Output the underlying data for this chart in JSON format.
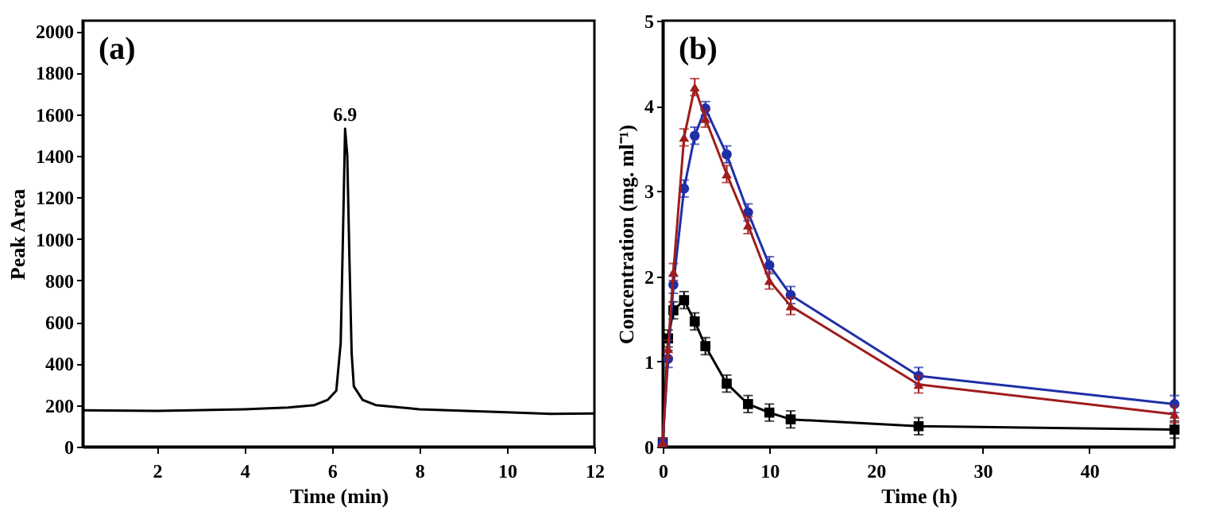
{
  "chart_data": [
    {
      "type": "line",
      "xlabel": "Time (min)",
      "ylabel": "Peak Area",
      "xlim": [
        0.3,
        12
      ],
      "ylim": [
        0,
        2050
      ],
      "xticks": [
        2,
        4,
        6,
        8,
        10,
        12
      ],
      "yticks": [
        0,
        200,
        400,
        600,
        800,
        1000,
        1200,
        1400,
        1600,
        1800,
        2000
      ],
      "grid": false,
      "marker": "none",
      "line_style": "solid",
      "annotations": [
        "(a)",
        {
          "text": "6.9",
          "x": 6.3,
          "y": 1530
        }
      ],
      "series": [
        {
          "color": "#000000",
          "x": [
            0.3,
            2,
            4,
            5,
            5.6,
            5.9,
            6.1,
            6.2,
            6.25,
            6.3,
            6.35,
            6.4,
            6.45,
            6.5,
            6.7,
            7,
            8,
            10,
            11,
            12
          ],
          "values": [
            175,
            172,
            180,
            188,
            200,
            225,
            270,
            500,
            1000,
            1530,
            1400,
            900,
            450,
            290,
            225,
            200,
            180,
            165,
            158,
            160
          ]
        }
      ]
    },
    {
      "type": "line",
      "xlabel": "Time (h)",
      "ylabel": "Concentration (mg. ml⁻¹)",
      "xlim": [
        0,
        48
      ],
      "ylim": [
        0,
        5
      ],
      "xticks": [
        0,
        10,
        20,
        30,
        40
      ],
      "yticks": [
        0,
        1,
        2,
        3,
        4,
        5
      ],
      "grid": false,
      "line_style": "solid",
      "annotations": [
        "(b)"
      ],
      "x": [
        0,
        0.5,
        1,
        2,
        3,
        4,
        6,
        8,
        10,
        12,
        24,
        48
      ],
      "series": [
        {
          "color": "#000000",
          "marker": "square",
          "values": [
            0.05,
            1.27,
            1.6,
            1.72,
            1.47,
            1.18,
            0.74,
            0.5,
            0.4,
            0.32,
            0.24,
            0.2
          ],
          "errors": [
            0.05,
            0.1,
            0.1,
            0.1,
            0.1,
            0.1,
            0.1,
            0.1,
            0.1,
            0.1,
            0.1,
            0.1
          ]
        },
        {
          "color": "#1f2fa8",
          "marker": "circle",
          "values": [
            0.05,
            1.03,
            1.9,
            3.03,
            3.65,
            3.97,
            3.43,
            2.75,
            2.13,
            1.78,
            0.83,
            0.5
          ],
          "errors": [
            0.05,
            0.1,
            0.1,
            0.1,
            0.1,
            0.08,
            0.1,
            0.1,
            0.1,
            0.1,
            0.1,
            0.1
          ]
        },
        {
          "color": "#a01c1c",
          "marker": "triangle",
          "values": [
            0.05,
            1.15,
            2.05,
            3.63,
            4.22,
            3.85,
            3.2,
            2.6,
            1.95,
            1.65,
            0.73,
            0.38
          ],
          "errors": [
            0.05,
            0.1,
            0.1,
            0.1,
            0.1,
            0.1,
            0.1,
            0.1,
            0.1,
            0.1,
            0.1,
            0.1
          ]
        }
      ]
    }
  ]
}
